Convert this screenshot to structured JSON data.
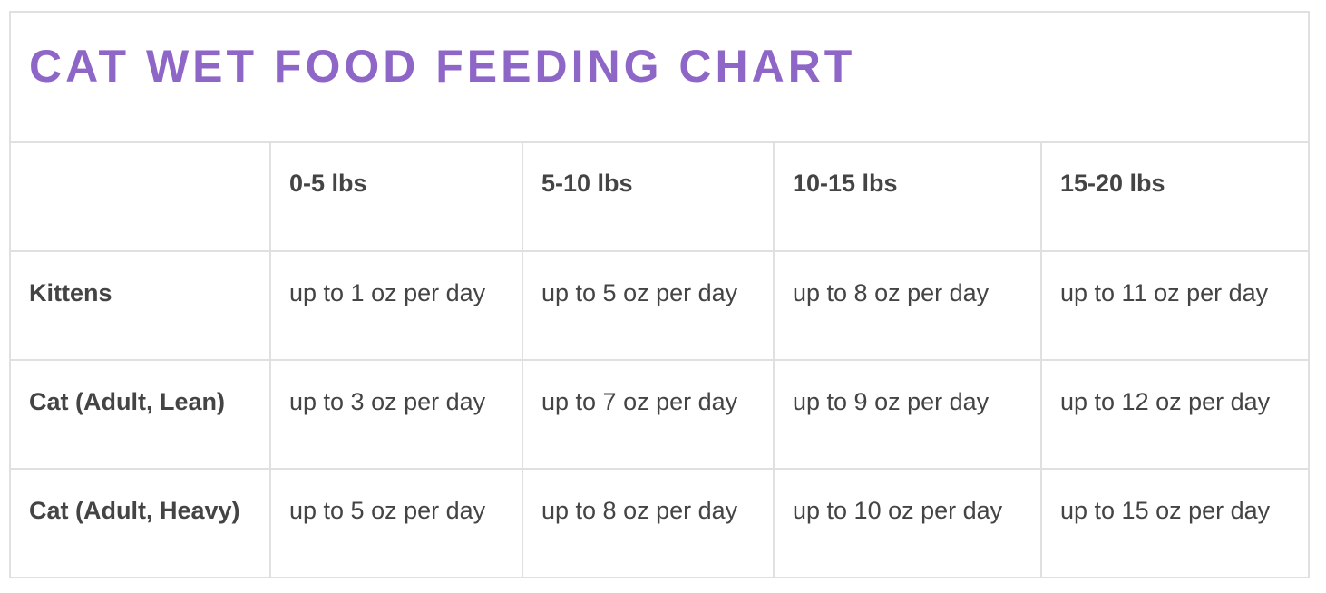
{
  "title": "CAT WET FOOD FEEDING CHART",
  "colors": {
    "title": "#8e66c8",
    "text": "#444444",
    "border": "#e0e0e0",
    "background": "#ffffff"
  },
  "table": {
    "columns": [
      "",
      "0-5 lbs",
      "5-10 lbs",
      "10-15 lbs",
      "15-20 lbs"
    ],
    "rows": [
      {
        "label": "Kittens",
        "cells": [
          "up to 1 oz per day",
          "up to 5 oz per day",
          "up to 8 oz per day",
          "up to 11 oz per day"
        ]
      },
      {
        "label": "Cat (Adult, Lean)",
        "cells": [
          "up to 3 oz per day",
          "up to 7 oz per day",
          "up to 9 oz per day",
          "up to 12 oz per day"
        ]
      },
      {
        "label": "Cat (Adult, Heavy)",
        "cells": [
          "up to 5 oz per day",
          "up to 8 oz per day",
          "up to 10 oz per day",
          "up to 15 oz per day"
        ]
      }
    ]
  }
}
